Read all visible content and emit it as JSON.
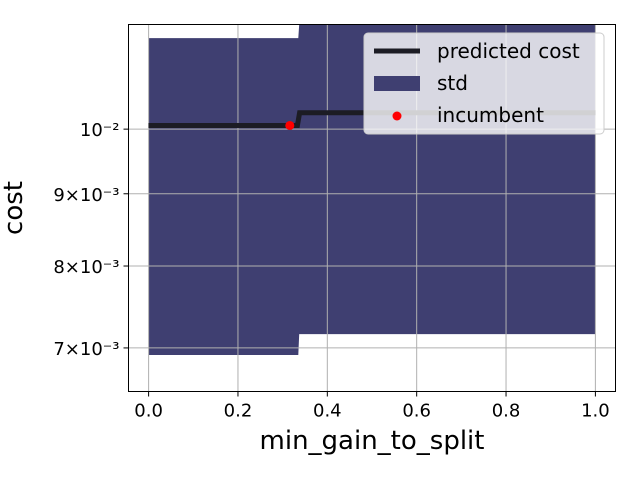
{
  "chart_data": {
    "type": "line",
    "xlabel": "min_gain_to_split",
    "ylabel": "cost",
    "xlim": [
      -0.045,
      1.045
    ],
    "ylim": [
      0.00652,
      0.01186
    ],
    "yscale": "log",
    "grid": true,
    "x_ticks": [
      {
        "value": 0.0,
        "label": "0.0"
      },
      {
        "value": 0.2,
        "label": "0.2"
      },
      {
        "value": 0.4,
        "label": "0.4"
      },
      {
        "value": 0.6,
        "label": "0.6"
      },
      {
        "value": 0.8,
        "label": "0.8"
      },
      {
        "value": 1.0,
        "label": "1.0"
      }
    ],
    "y_ticks": [
      {
        "value": 0.007,
        "label": "7×10⁻³"
      },
      {
        "value": 0.008,
        "label": "8×10⁻³"
      },
      {
        "value": 0.009,
        "label": "9×10⁻³"
      },
      {
        "value": 0.01,
        "label": "10⁻²"
      }
    ],
    "legend": {
      "position": "top-right",
      "entries": [
        {
          "label": "predicted cost",
          "kind": "line"
        },
        {
          "label": "std",
          "kind": "patch"
        },
        {
          "label": "incumbent",
          "kind": "marker"
        }
      ]
    },
    "series": [
      {
        "name": "predicted cost",
        "x": [
          0.0,
          0.333,
          0.338,
          1.0
        ],
        "y": [
          0.01006,
          0.01006,
          0.01027,
          0.01027
        ],
        "color": "#1c1c24"
      }
    ],
    "band": {
      "name": "std",
      "x": [
        0.0,
        0.335,
        0.337,
        1.0
      ],
      "upper": [
        0.0116,
        0.0116,
        0.01195,
        0.01195
      ],
      "lower": [
        0.00692,
        0.00692,
        0.00716,
        0.00716
      ],
      "color": "#3f3f71"
    },
    "incumbent": {
      "name": "incumbent",
      "x": 0.316,
      "y": 0.01006,
      "color": "#ff0000"
    }
  }
}
